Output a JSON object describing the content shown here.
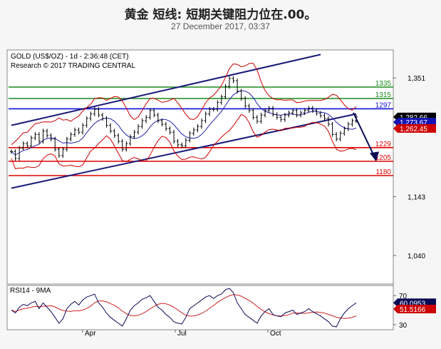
{
  "header": {
    "title": "黄金 短线: 短期关键阻力位在.00。",
    "date": "27 December 2017, 03:37"
  },
  "colors": {
    "price": "#000000",
    "channel": "#1a1a7a",
    "support": "#e00000",
    "resistance_green": "#1a8a1a",
    "resistance_blue": "#1010dd",
    "bollinger": "#cc0000",
    "ma": "#2222aa",
    "rsi": "#0a0a55",
    "rsi_ma": "#cc2222"
  },
  "chart_data": {
    "type": "line",
    "info_line1": "GOLD (US$/OZ) - 1d - 2:36:48 (CET)",
    "info_line2": "Research © 2017 TRADING CENTRAL",
    "y_ticks": [
      "1,351",
      "1,143",
      "1,040"
    ],
    "x_ticks": [
      "Apr",
      "Jul",
      "Oct"
    ],
    "ylim": [
      990,
      1400
    ],
    "levels": [
      {
        "label": "1335",
        "value": 1335,
        "kind": "resistance_green"
      },
      {
        "label": "1315",
        "value": 1315,
        "kind": "resistance_green"
      },
      {
        "label": "1297",
        "value": 1297,
        "kind": "resistance_blue"
      },
      {
        "label": "1229",
        "value": 1229,
        "kind": "support"
      },
      {
        "label": "1205",
        "value": 1205,
        "kind": "support"
      },
      {
        "label": "1180",
        "value": 1180,
        "kind": "support"
      }
    ],
    "price_tags": [
      {
        "label": "1,282.66",
        "value": 1282.66,
        "style": "price"
      },
      {
        "label": "1,273.67",
        "value": 1273.67,
        "style": "ma"
      },
      {
        "label": "1,262.45",
        "value": 1262.45,
        "style": "bollinger"
      }
    ],
    "series": [
      {
        "values": [
          1222,
          1210,
          1228,
          1236,
          1232,
          1246,
          1252,
          1240,
          1258,
          1250,
          1244,
          1226,
          1215,
          1226,
          1244,
          1252,
          1260,
          1256,
          1268,
          1280,
          1288,
          1296,
          1286,
          1280,
          1268,
          1258,
          1250,
          1240,
          1226,
          1236,
          1248,
          1256,
          1266,
          1276,
          1282,
          1294,
          1286,
          1276,
          1270,
          1262,
          1256,
          1240,
          1234,
          1232,
          1242,
          1254,
          1260,
          1266,
          1276,
          1288,
          1296,
          1296,
          1308,
          1318,
          1336,
          1350,
          1346,
          1328,
          1315,
          1302,
          1294,
          1282,
          1275,
          1286,
          1294,
          1298,
          1287,
          1282,
          1278,
          1286,
          1290,
          1294,
          1286,
          1290,
          1294,
          1298,
          1294,
          1289,
          1285,
          1280,
          1270,
          1252,
          1244,
          1254,
          1262,
          1270,
          1276,
          1282.66
        ]
      }
    ],
    "rsi": {
      "title": "RSI14 - 9MA",
      "y_ticks": [
        "70",
        "30"
      ],
      "ylim": [
        25,
        80
      ],
      "tags": [
        {
          "label": "60.0953",
          "value": 60.0953,
          "style": "rsi"
        },
        {
          "label": "51.5166",
          "value": 51.5166,
          "style": "rsi_ma"
        }
      ],
      "values": [
        50,
        46,
        54,
        58,
        56,
        60,
        62,
        52,
        60,
        54,
        48,
        40,
        32,
        38,
        52,
        58,
        62,
        57,
        64,
        68,
        70,
        72,
        60,
        54,
        46,
        40,
        36,
        32,
        28,
        38,
        50,
        56,
        60,
        65,
        67,
        70,
        62,
        54,
        50,
        44,
        40,
        34,
        32,
        31,
        40,
        52,
        56,
        60,
        64,
        68,
        70,
        66,
        70,
        72,
        78,
        80,
        74,
        60,
        52,
        44,
        40,
        36,
        32,
        42,
        48,
        52,
        44,
        42,
        41,
        46,
        48,
        50,
        44,
        46,
        48,
        52,
        48,
        45,
        42,
        38,
        34,
        28,
        27,
        38,
        46,
        52,
        56,
        60.0953
      ]
    }
  }
}
